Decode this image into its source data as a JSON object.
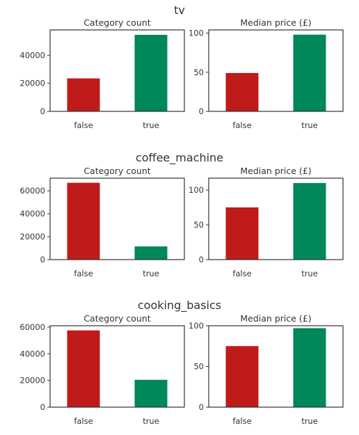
{
  "colors": {
    "false": "#bf1b1b",
    "true": "#00875a"
  },
  "chart_data": [
    {
      "type": "bar",
      "group": "tv",
      "title": "Category count",
      "categories": [
        "false",
        "true"
      ],
      "values": [
        23500,
        54500
      ],
      "ylim": [
        0,
        58000
      ],
      "yticks": [
        0,
        20000,
        40000
      ],
      "grid": false
    },
    {
      "type": "bar",
      "group": "tv",
      "title": "Median price (£)",
      "categories": [
        "false",
        "true"
      ],
      "values": [
        49,
        98
      ],
      "ylim": [
        0,
        104
      ],
      "yticks": [
        0,
        50,
        100
      ],
      "grid": false
    },
    {
      "type": "bar",
      "group": "coffee_machine",
      "title": "Category count",
      "categories": [
        "false",
        "true"
      ],
      "values": [
        67000,
        11500
      ],
      "ylim": [
        0,
        71000
      ],
      "yticks": [
        0,
        20000,
        40000,
        60000
      ],
      "grid": false
    },
    {
      "type": "bar",
      "group": "coffee_machine",
      "title": "Median price (£)",
      "categories": [
        "false",
        "true"
      ],
      "values": [
        75,
        110
      ],
      "ylim": [
        0,
        117
      ],
      "yticks": [
        0,
        50,
        100
      ],
      "grid": false
    },
    {
      "type": "bar",
      "group": "cooking_basics",
      "title": "Category count",
      "categories": [
        "false",
        "true"
      ],
      "values": [
        57500,
        20500
      ],
      "ylim": [
        0,
        61000
      ],
      "yticks": [
        0,
        20000,
        40000,
        60000
      ],
      "grid": false
    },
    {
      "type": "bar",
      "group": "cooking_basics",
      "title": "Median price (£)",
      "categories": [
        "false",
        "true"
      ],
      "values": [
        75,
        97
      ],
      "ylim": [
        0,
        100
      ],
      "yticks": [
        0,
        50,
        100
      ],
      "grid": false
    }
  ]
}
